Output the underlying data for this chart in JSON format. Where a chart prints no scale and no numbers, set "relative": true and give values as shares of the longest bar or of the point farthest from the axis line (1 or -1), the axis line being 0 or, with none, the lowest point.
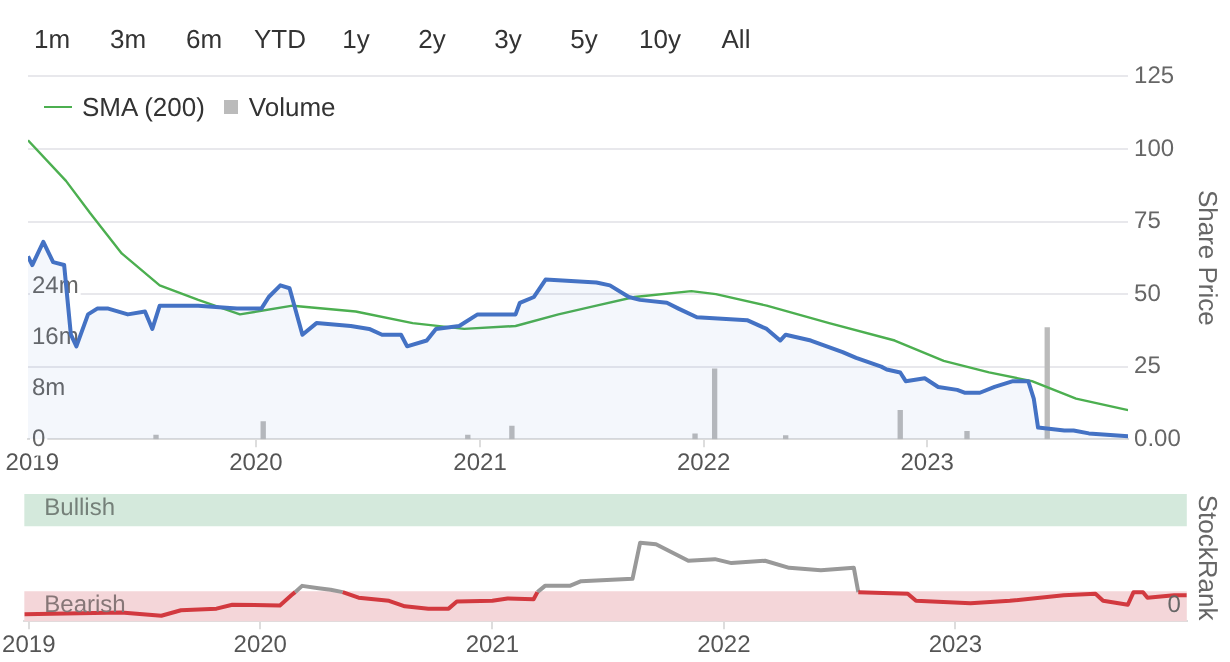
{
  "chart_data": [
    {
      "type": "other",
      "annotations": [
        "1m",
        "3m",
        "6m",
        "YTD",
        "1y",
        "2y",
        "3y",
        "5y",
        "10y",
        "All"
      ]
    },
    {
      "type": "line",
      "ylabel": "Share Price",
      "xlim": [
        "2018-12-25",
        "2023-11-25"
      ],
      "ylim": [
        0,
        125
      ],
      "yticks": [
        {
          "value": 0,
          "label": "0.00"
        },
        25,
        50,
        75,
        100,
        125
      ],
      "y2lim": [
        0,
        57
      ],
      "y2ticks": [
        0,
        {
          "value": 8,
          "label": "8m"
        },
        {
          "value": 16,
          "label": "16m"
        },
        {
          "value": 24,
          "label": "24m"
        }
      ],
      "xticks": [
        "2019",
        "2020",
        "2021",
        "2022",
        "2023"
      ],
      "grid": "y",
      "legend": "top left",
      "series": [
        {
          "type": "area",
          "color": "#4472c4",
          "x": [
            "2018-12-25",
            "2019-01-01",
            "2019-01-19",
            "2019-02-04",
            "2019-02-22",
            "2019-03-05",
            "2019-03-14",
            "2019-04-02",
            "2019-04-17",
            "2019-05-05",
            "2019-06-06",
            "2019-07-04",
            "2019-07-16",
            "2019-07-28",
            "2019-09-29",
            "2019-12-01",
            "2020-01-10",
            "2020-01-22",
            "2020-02-10",
            "2020-02-25",
            "2020-03-17",
            "2020-04-09",
            "2020-06-04",
            "2020-07-04",
            "2020-07-25",
            "2020-08-25",
            "2020-09-04",
            "2020-10-06",
            "2020-10-21",
            "2020-11-28",
            "2020-12-28",
            "2021-02-28",
            "2021-03-07",
            "2021-03-30",
            "2021-04-18",
            "2021-07-10",
            "2021-08-01",
            "2021-09-01",
            "2021-09-19",
            "2021-11-02",
            "2021-11-21",
            "2021-12-21",
            "2022-03-13",
            "2022-04-14",
            "2022-05-06",
            "2022-05-15",
            "2022-06-25",
            "2022-08-16",
            "2022-09-07",
            "2022-10-18",
            "2022-10-27",
            "2022-11-18",
            "2022-11-27",
            "2022-12-28",
            "2023-01-19",
            "2023-02-19",
            "2023-03-04",
            "2023-03-28",
            "2023-04-21",
            "2023-05-21",
            "2023-06-15",
            "2023-06-24",
            "2023-07-01",
            "2023-08-13",
            "2023-08-28",
            "2023-09-22",
            "2023-11-25"
          ],
          "values": [
            63,
            60,
            68,
            61,
            60,
            36,
            32,
            43,
            45,
            45,
            43,
            44,
            38,
            46,
            46,
            45,
            45,
            49,
            53,
            52,
            36,
            40,
            39,
            38,
            36,
            36,
            32,
            34,
            38,
            39,
            43,
            43,
            47,
            49,
            55,
            54,
            53,
            49,
            48,
            47,
            45,
            42,
            41,
            38,
            34,
            36,
            34,
            30,
            28,
            25,
            24,
            23,
            20,
            21,
            18,
            17,
            16,
            16,
            18,
            20,
            20,
            14,
            4,
            3,
            3,
            2,
            1
          ]
        },
        {
          "type": "line",
          "name": "SMA (200)",
          "color": "#4caf50",
          "x": [
            "2018-12-25",
            "2019-02-25",
            "2019-04-05",
            "2019-05-27",
            "2019-07-28",
            "2019-09-29",
            "2019-12-06",
            "2020-03-01",
            "2020-06-12",
            "2020-09-13",
            "2020-12-06",
            "2021-02-28",
            "2021-05-09",
            "2021-07-10",
            "2021-09-10",
            "2021-12-12",
            "2022-01-21",
            "2022-04-14",
            "2022-07-25",
            "2022-11-09",
            "2023-01-28",
            "2023-04-12",
            "2023-06-21",
            "2023-09-01",
            "2023-11-25"
          ],
          "values": [
            103,
            89,
            78,
            64,
            53,
            48,
            43,
            46,
            44,
            40,
            38,
            39,
            43,
            46,
            49,
            51,
            50,
            46,
            40,
            34,
            27,
            23,
            20,
            14,
            10
          ]
        },
        {
          "type": "bar",
          "name": "Volume",
          "axis": "y2",
          "color": "#bbbbbb",
          "x": [
            "2019-07-22",
            "2020-01-13",
            "2020-12-12",
            "2021-02-22",
            "2021-12-18",
            "2022-01-19",
            "2022-05-15",
            "2022-11-18",
            "2023-03-07",
            "2023-07-16"
          ],
          "values": [
            0.6,
            2.7,
            0.6,
            2,
            0.8,
            11,
            0.5,
            4.5,
            1.2,
            17.5
          ]
        }
      ]
    },
    {
      "type": "line",
      "ylabel": "StockRank",
      "relative": true,
      "xlim": [
        "2018-12-25",
        "2024-01-01"
      ],
      "xticks": [
        "2019",
        "2020",
        "2021",
        "2022",
        "2023"
      ],
      "annotations": [
        "0"
      ],
      "bands": [
        {
          "axis": "y",
          "from": 1.21,
          "to": 1.62,
          "label": "Bullish",
          "color": "#d4e9dc"
        },
        {
          "axis": "y",
          "from": 0,
          "to": 0.38,
          "label": "Bearish",
          "color": "#f4d6d9"
        }
      ],
      "x": [
        "2018-12-25",
        "2019-05-27",
        "2019-07-29",
        "2019-08-29",
        "2019-10-24",
        "2019-11-18",
        "2020-02-01",
        "2020-02-19",
        "2020-02-25",
        "2020-03-07",
        "2020-04-02",
        "2020-04-21",
        "2020-05-10",
        "2020-06-04",
        "2020-07-22",
        "2020-08-16",
        "2020-09-22",
        "2020-10-24",
        "2020-11-06",
        "2021-01-01",
        "2021-01-25",
        "2021-03-07",
        "2021-03-13",
        "2021-03-25",
        "2021-05-03",
        "2021-05-21",
        "2021-08-10",
        "2021-08-22",
        "2021-09-16",
        "2021-11-06",
        "2021-12-18",
        "2022-01-13",
        "2022-03-07",
        "2022-04-14",
        "2022-06-03",
        "2022-07-25",
        "2022-08-01",
        "2022-10-18",
        "2022-10-31",
        "2023-01-25",
        "2023-03-28",
        "2023-06-21",
        "2023-08-10",
        "2023-08-22",
        "2023-09-30",
        "2023-10-09",
        "2023-10-24",
        "2023-10-31",
        "2023-12-12",
        "2024-01-01"
      ],
      "series": [
        {
          "color": "#d2393f",
          "values": [
            0.09,
            0.11,
            0.07,
            0.14,
            0.16,
            0.21,
            0.2,
            0.33,
            0.37,
            null,
            null,
            null,
            0.37,
            0.3,
            0.26,
            0.19,
            0.16,
            0.16,
            0.25,
            0.26,
            0.29,
            0.28,
            0.37,
            null,
            null,
            null,
            null,
            null,
            null,
            null,
            null,
            null,
            null,
            null,
            null,
            null,
            0.37,
            0.35,
            0.26,
            0.23,
            0.26,
            0.33,
            0.35,
            0.26,
            0.21,
            0.37,
            0.37,
            0.3,
            0.33,
            0.33
          ]
        },
        {
          "color": "#999999",
          "values": [
            null,
            null,
            null,
            null,
            null,
            null,
            null,
            null,
            0.37,
            0.45,
            0.42,
            0.4,
            0.37,
            null,
            null,
            null,
            null,
            null,
            null,
            null,
            null,
            null,
            0.37,
            0.45,
            0.45,
            0.51,
            0.54,
            1,
            0.98,
            0.77,
            0.79,
            0.74,
            0.77,
            0.68,
            0.65,
            0.68,
            0.37,
            null,
            null,
            null,
            null,
            null,
            null,
            null,
            null,
            null,
            null,
            null,
            null,
            null
          ]
        }
      ]
    }
  ]
}
